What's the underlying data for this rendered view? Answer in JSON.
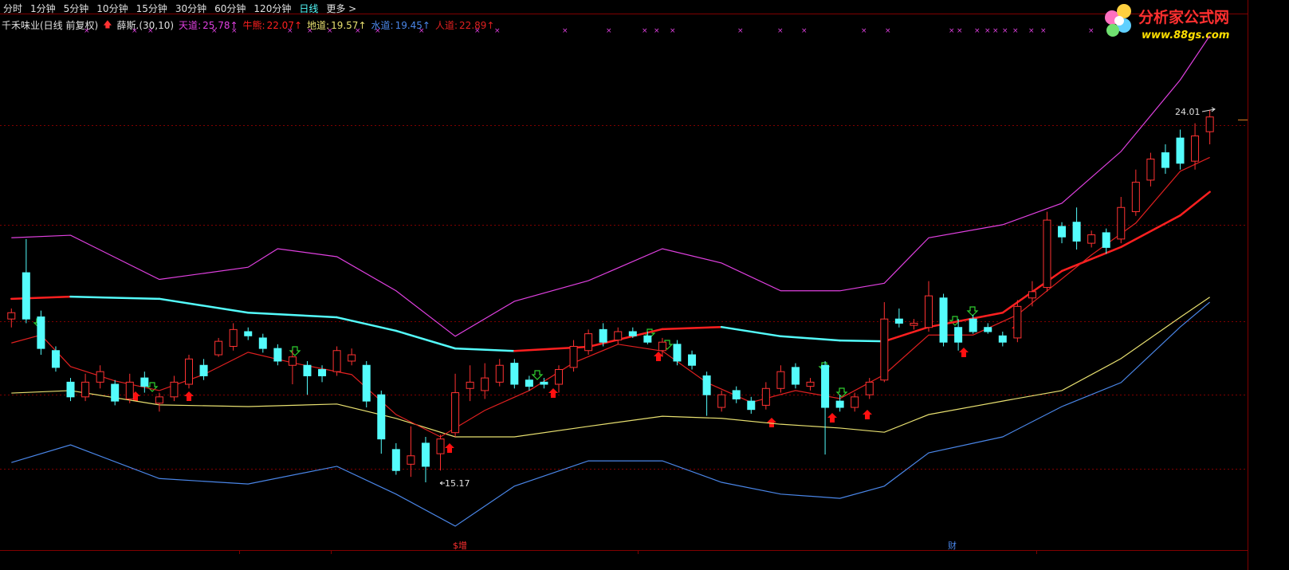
{
  "toolbar": {
    "tabs": [
      {
        "label": "分时"
      },
      {
        "label": "1分钟"
      },
      {
        "label": "5分钟"
      },
      {
        "label": "10分钟"
      },
      {
        "label": "15分钟"
      },
      {
        "label": "30分钟"
      },
      {
        "label": "60分钟"
      },
      {
        "label": "120分钟"
      },
      {
        "label": "日线",
        "active": true
      },
      {
        "label": "更多 >"
      }
    ]
  },
  "logo": {
    "title": "分析家公式网",
    "url": "www.88gs.com"
  },
  "chart_data": {
    "type": "candlestick",
    "title": "千禾味业(日线 前复权)",
    "indicator": "薛斯.(30,10)",
    "ylim": [
      13.5,
      26.0
    ],
    "up_color": "#ff3232",
    "down_color": "#54fcfc",
    "candles": {
      "open": [
        19.05,
        20.15,
        19.1,
        18.3,
        17.55,
        17.2,
        17.55,
        17.5,
        17.15,
        17.65,
        17.05,
        17.2,
        17.5,
        17.95,
        18.2,
        18.4,
        18.75,
        18.6,
        18.35,
        17.95,
        17.95,
        17.85,
        17.8,
        18.05,
        17.95,
        17.25,
        15.95,
        15.6,
        16.1,
        15.85,
        16.35,
        17.4,
        17.35,
        17.55,
        18.0,
        17.6,
        17.55,
        17.5,
        17.9,
        18.3,
        18.8,
        18.55,
        18.75,
        18.65,
        18.3,
        18.45,
        18.2,
        17.7,
        16.95,
        17.35,
        17.1,
        17.0,
        17.4,
        17.9,
        17.45,
        17.95,
        17.1,
        16.95,
        17.25,
        17.6,
        19.05,
        18.9,
        18.85,
        19.55,
        18.85,
        19.05,
        18.85,
        18.65,
        18.6,
        19.55,
        19.8,
        21.25,
        21.35,
        20.85,
        21.1,
        20.95,
        21.6,
        22.35,
        23.0,
        23.35,
        22.8,
        23.5
      ],
      "high": [
        19.3,
        20.95,
        19.25,
        18.4,
        17.65,
        17.75,
        17.95,
        17.6,
        17.75,
        17.8,
        17.3,
        17.7,
        18.2,
        18.1,
        18.6,
        18.95,
        18.85,
        18.7,
        18.45,
        18.3,
        18.05,
        17.95,
        18.4,
        18.35,
        18.05,
        17.35,
        16.1,
        16.5,
        16.25,
        16.3,
        17.75,
        17.95,
        18.0,
        18.1,
        18.1,
        17.7,
        17.65,
        17.95,
        18.55,
        18.8,
        18.95,
        18.85,
        18.85,
        18.75,
        18.6,
        18.55,
        18.3,
        17.8,
        17.35,
        17.45,
        17.2,
        17.55,
        17.95,
        18.0,
        17.65,
        18.05,
        17.25,
        17.3,
        17.65,
        19.45,
        19.3,
        19.05,
        19.95,
        19.65,
        19.05,
        19.15,
        18.95,
        18.75,
        19.5,
        19.95,
        21.6,
        21.35,
        21.7,
        21.15,
        21.2,
        21.95,
        22.6,
        23.0,
        23.2,
        23.55,
        23.7,
        24.01
      ],
      "low": [
        18.85,
        18.95,
        18.2,
        17.8,
        17.1,
        17.1,
        17.4,
        17.0,
        17.05,
        17.3,
        16.85,
        17.1,
        17.4,
        17.6,
        18.15,
        18.3,
        18.55,
        18.25,
        17.95,
        17.5,
        17.25,
        17.55,
        17.7,
        17.95,
        16.95,
        15.85,
        15.35,
        15.3,
        15.17,
        15.45,
        16.25,
        17.1,
        17.15,
        17.45,
        17.4,
        17.35,
        17.4,
        17.3,
        17.8,
        18.2,
        18.4,
        18.45,
        18.6,
        18.45,
        18.15,
        17.95,
        17.85,
        16.75,
        16.85,
        17.05,
        16.8,
        16.9,
        17.3,
        17.4,
        17.35,
        15.83,
        16.85,
        16.85,
        17.15,
        17.55,
        18.85,
        18.8,
        18.75,
        18.4,
        18.3,
        18.7,
        18.7,
        18.4,
        18.5,
        19.35,
        19.7,
        20.85,
        20.7,
        20.75,
        20.6,
        20.85,
        21.5,
        22.2,
        22.5,
        22.6,
        22.6,
        23.2
      ],
      "close": [
        19.2,
        19.05,
        18.35,
        17.9,
        17.2,
        17.55,
        17.8,
        17.1,
        17.55,
        17.45,
        17.2,
        17.55,
        18.1,
        17.7,
        18.52,
        18.8,
        18.65,
        18.35,
        18.05,
        18.15,
        17.7,
        17.7,
        18.3,
        18.2,
        17.1,
        16.2,
        15.45,
        15.8,
        15.55,
        16.2,
        17.3,
        17.55,
        17.65,
        17.95,
        17.5,
        17.45,
        17.5,
        17.85,
        18.4,
        18.7,
        18.5,
        18.75,
        18.65,
        18.5,
        18.5,
        18.05,
        17.95,
        17.25,
        17.25,
        17.15,
        16.9,
        17.4,
        17.8,
        17.5,
        17.55,
        16.95,
        16.95,
        17.2,
        17.55,
        19.05,
        18.95,
        18.95,
        19.6,
        18.5,
        18.5,
        18.75,
        18.75,
        18.5,
        19.35,
        19.7,
        21.4,
        21.0,
        20.9,
        21.05,
        20.75,
        21.7,
        22.3,
        22.85,
        22.65,
        22.75,
        23.4,
        23.85
      ]
    },
    "series": [
      {
        "name": "天道",
        "value": 25.78,
        "color": "#e040e0",
        "x": [
          0,
          4,
          10,
          16,
          18,
          22,
          26,
          30,
          34,
          39,
          44,
          48,
          52,
          56,
          59,
          62,
          67,
          71,
          75,
          79,
          81
        ],
        "values": [
          20.98,
          21.04,
          19.99,
          20.28,
          20.72,
          20.53,
          19.72,
          18.64,
          19.47,
          19.96,
          20.72,
          20.38,
          19.72,
          19.72,
          19.9,
          20.98,
          21.29,
          21.8,
          23.03,
          24.73,
          25.78
        ]
      },
      {
        "name": "牛熊",
        "value": 22.07,
        "color": "#ff2020",
        "x": [
          0,
          4,
          10,
          16,
          22,
          26,
          30,
          34,
          39,
          44,
          48,
          52,
          56,
          59,
          62,
          67,
          71,
          75,
          79,
          81
        ],
        "values": [
          19.53,
          19.58,
          19.53,
          19.2,
          19.09,
          18.77,
          18.35,
          18.29,
          18.39,
          18.81,
          18.86,
          18.64,
          18.54,
          18.52,
          18.86,
          19.2,
          20.19,
          20.76,
          21.51,
          22.07
        ]
      },
      {
        "name": "地道",
        "value": 19.57,
        "color": "#e8e070",
        "x": [
          0,
          4,
          10,
          16,
          22,
          26,
          30,
          34,
          39,
          44,
          48,
          52,
          56,
          59,
          62,
          67,
          71,
          75,
          79,
          81
        ],
        "values": [
          17.29,
          17.35,
          17.01,
          16.97,
          17.03,
          16.69,
          16.25,
          16.25,
          16.5,
          16.74,
          16.69,
          16.55,
          16.46,
          16.36,
          16.78,
          17.1,
          17.35,
          18.11,
          19.09,
          19.57
        ]
      },
      {
        "name": "水道",
        "value": 19.45,
        "color": "#4a86e8",
        "x": [
          0,
          4,
          10,
          16,
          22,
          26,
          30,
          34,
          39,
          44,
          48,
          52,
          56,
          59,
          62,
          67,
          71,
          75,
          79,
          81
        ],
        "values": [
          15.64,
          16.06,
          15.26,
          15.13,
          15.55,
          14.89,
          14.13,
          15.08,
          15.68,
          15.68,
          15.17,
          14.89,
          14.79,
          15.08,
          15.87,
          16.25,
          16.97,
          17.54,
          18.86,
          19.45
        ]
      },
      {
        "name": "人道",
        "value": 22.89,
        "color": "#e02020",
        "x": [
          0,
          2,
          4,
          7,
          10,
          13,
          16,
          19,
          23,
          26,
          29,
          32,
          35,
          38,
          41,
          44,
          47,
          50,
          53,
          56,
          59,
          62,
          65,
          68,
          70,
          73,
          76,
          79,
          81
        ],
        "values": [
          18.48,
          18.67,
          17.92,
          17.58,
          17.35,
          17.73,
          18.26,
          18.01,
          17.73,
          16.78,
          16.25,
          16.88,
          17.35,
          18.01,
          18.45,
          18.29,
          17.54,
          17.07,
          17.35,
          17.16,
          17.73,
          18.67,
          18.67,
          19.15,
          19.72,
          20.57,
          21.33,
          22.56,
          22.89
        ]
      }
    ],
    "annotations": [
      "24.01",
      "15.17"
    ],
    "markers": [
      "$增",
      "财"
    ]
  }
}
